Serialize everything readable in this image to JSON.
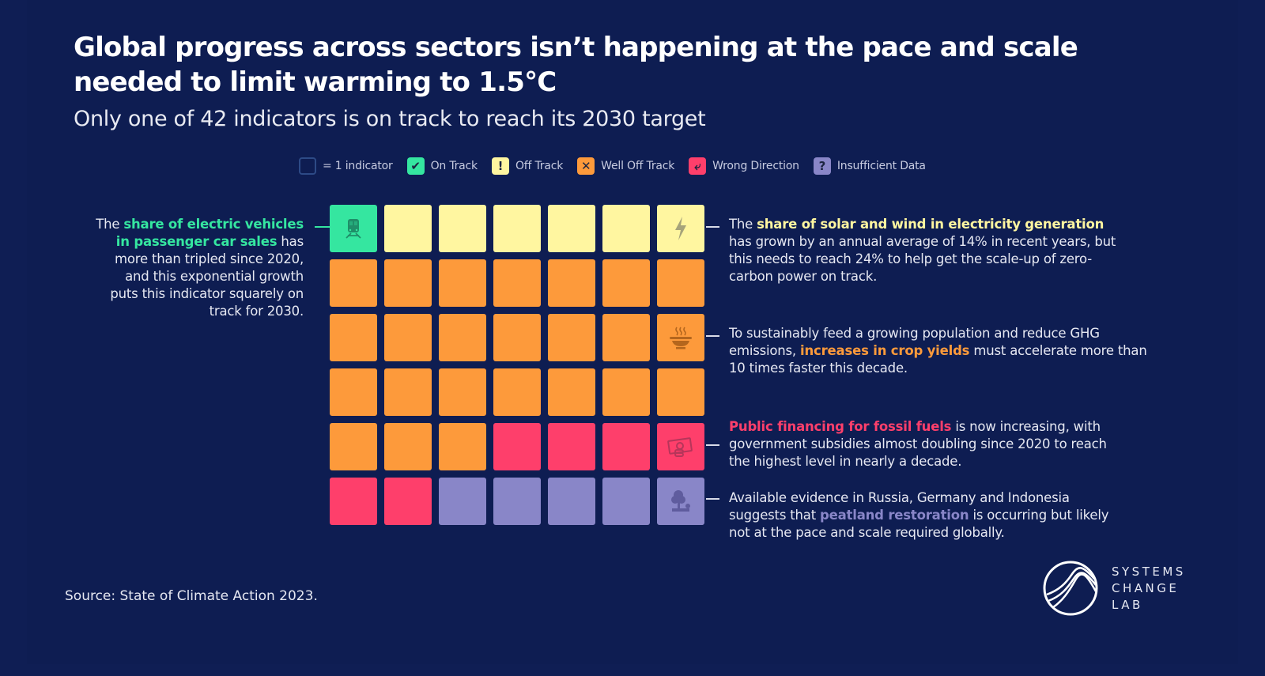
{
  "title": "Global progress across sectors isn’t happening at the pace and scale needed to limit warming to 1.5°C",
  "subtitle": "Only one of 42 indicators is on track to reach its 2030 target",
  "legend": {
    "unit": {
      "symbol": "",
      "label": "= 1 indicator",
      "icon": "empty-square-icon"
    },
    "items": [
      {
        "key": "on",
        "symbol": "✔",
        "label": "On Track",
        "color": "#35e6a0",
        "icon": "check-icon"
      },
      {
        "key": "off",
        "symbol": "!",
        "label": "Off Track",
        "color": "#fff6a0",
        "icon": "exclamation-icon"
      },
      {
        "key": "well",
        "symbol": "✕",
        "label": "Well Off Track",
        "color": "#fd9a3b",
        "icon": "x-icon"
      },
      {
        "key": "wrong",
        "symbol": "⤶",
        "label": "Wrong Direction",
        "color": "#fe3f6b",
        "icon": "u-turn-arrow-icon"
      },
      {
        "key": "insuf",
        "symbol": "?",
        "label": "Insufficient Data",
        "color": "#8986c8",
        "icon": "question-icon"
      }
    ]
  },
  "chart_data": {
    "type": "waffle",
    "title": "Global progress across sectors isn’t happening at the pace and scale needed to limit warming to 1.5°C",
    "subtitle": "Only one of 42 indicators is on track to reach its 2030 target",
    "total_indicators": 42,
    "columns": 7,
    "rows": 6,
    "categories": [
      "On Track",
      "Off Track",
      "Well Off Track",
      "Wrong Direction",
      "Insufficient Data"
    ],
    "values": [
      1,
      6,
      24,
      6,
      5
    ],
    "colors": [
      "#35e6a0",
      "#fff6a0",
      "#fd9a3b",
      "#fe3f6b",
      "#8986c8"
    ],
    "cells": [
      [
        "on",
        "off",
        "off",
        "off",
        "off",
        "off",
        "off"
      ],
      [
        "well",
        "well",
        "well",
        "well",
        "well",
        "well",
        "well"
      ],
      [
        "well",
        "well",
        "well",
        "well",
        "well",
        "well",
        "well"
      ],
      [
        "well",
        "well",
        "well",
        "well",
        "well",
        "well",
        "well"
      ],
      [
        "well",
        "well",
        "well",
        "wrong",
        "wrong",
        "wrong",
        "wrong"
      ],
      [
        "wrong",
        "wrong",
        "insuf",
        "insuf",
        "insuf",
        "insuf",
        "insuf"
      ]
    ],
    "highlighted": [
      {
        "row": 0,
        "col": 0,
        "icon": "train-icon",
        "status": "On Track"
      },
      {
        "row": 0,
        "col": 6,
        "icon": "lightning-bolt-icon",
        "status": "Off Track"
      },
      {
        "row": 2,
        "col": 6,
        "icon": "steaming-bowl-icon",
        "status": "Well Off Track"
      },
      {
        "row": 4,
        "col": 6,
        "icon": "money-coins-icon",
        "status": "Wrong Direction"
      },
      {
        "row": 5,
        "col": 6,
        "icon": "tree-icon",
        "status": "Insufficient Data"
      }
    ]
  },
  "annotations": {
    "ev": {
      "pre": "The ",
      "highlight": "share of electric vehicles in passenger car sales",
      "post": " has more than tripled since 2020, and this exponential growth puts this indicator squarely on track for 2030.",
      "color": "#35e6a0"
    },
    "solar": {
      "pre": "The ",
      "highlight": "share of solar and wind in electricity generation",
      "post": " has grown by an annual average of 14% in recent years, but this needs to reach 24% to help get the scale-up of zero-carbon power on track.",
      "color": "#fff6a0"
    },
    "crop": {
      "pre": "To sustainably feed a growing population and reduce GHG emissions, ",
      "highlight": "increases in crop yields",
      "post": " must accelerate more than 10 times faster this decade.",
      "color": "#fd9a3b"
    },
    "fossil": {
      "pre": "",
      "highlight": "Public financing for fossil fuels",
      "post": " is now increasing, with government subsidies almost doubling since 2020 to reach the highest level in nearly a decade.",
      "color": "#fe3f6b"
    },
    "peat": {
      "pre": "Available evidence in Russia, Germany and Indonesia suggests that ",
      "highlight": "peatland restoration",
      "post": " is occurring but likely not at the pace and scale required globally.",
      "color": "#8986c8"
    }
  },
  "source": "Source: State of Climate Action 2023.",
  "logo": {
    "line1": "SYSTEMS",
    "line2": "CHANGE",
    "line3": "LAB"
  }
}
